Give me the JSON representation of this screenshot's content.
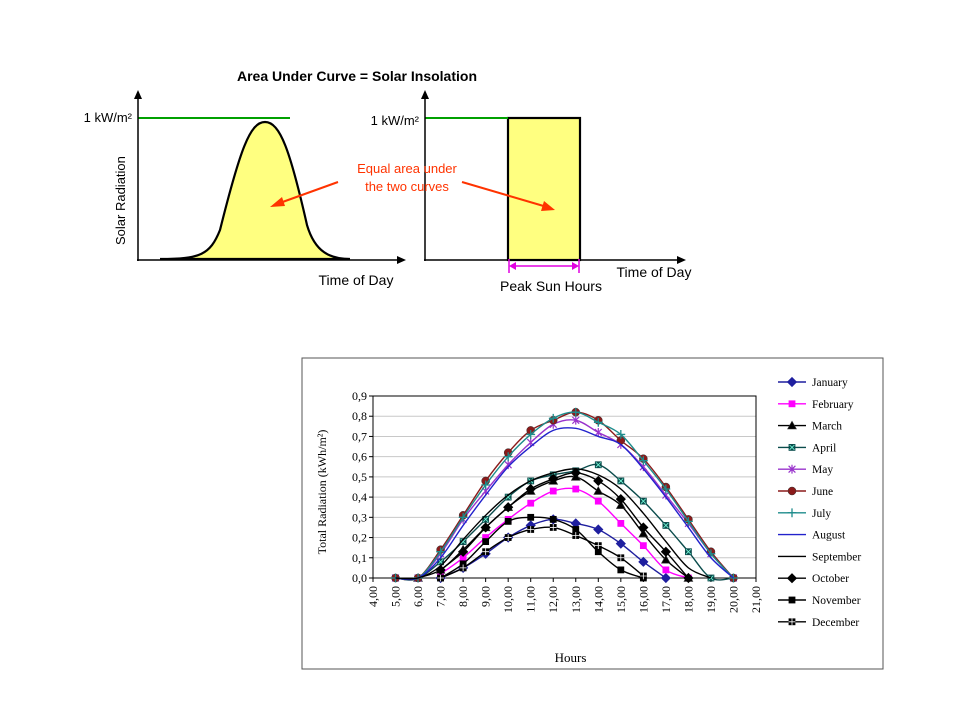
{
  "diagram": {
    "title": "Area Under Curve = Solar Insolation",
    "left": {
      "level_label": "1 kW/m²",
      "ylabel": "Solar Radiation",
      "xlabel": "Time of Day"
    },
    "right": {
      "level_label": "1 kW/m²",
      "xlabel": "Time of Day",
      "bracket_label": "Peak Sun Hours"
    },
    "annotation": [
      "Equal area under",
      "the two curves"
    ],
    "colors": {
      "fill": "#FFFF80",
      "level_line": "#00A000",
      "annotation": "#FF3300",
      "bracket": "#E000E0"
    }
  },
  "chart_data": {
    "type": "line",
    "xlabel": "Hours",
    "ylabel": "Total Radiation (kWh/m²)",
    "xlim": [
      4,
      21
    ],
    "ylim": [
      0,
      0.9
    ],
    "x_ticks": [
      "4,00",
      "5,00",
      "6,00",
      "7,00",
      "8,00",
      "9,00",
      "10,00",
      "11,00",
      "12,00",
      "13,00",
      "14,00",
      "15,00",
      "16,00",
      "17,00",
      "18,00",
      "19,00",
      "20,00",
      "21,00"
    ],
    "y_ticks": [
      "0,0",
      "0,1",
      "0,2",
      "0,3",
      "0,4",
      "0,5",
      "0,6",
      "0,7",
      "0,8",
      "0,9"
    ],
    "legend_position": "right",
    "grid": "horizontal",
    "x": [
      5,
      6,
      7,
      8,
      9,
      10,
      11,
      12,
      13,
      14,
      15,
      16,
      17,
      18,
      19,
      20
    ],
    "series": [
      {
        "name": "January",
        "color": "#1F1F9F",
        "marker": "diamond",
        "values": [
          null,
          null,
          0.0,
          0.05,
          0.12,
          0.2,
          0.26,
          0.29,
          0.27,
          0.24,
          0.17,
          0.08,
          0.0,
          null,
          null,
          null
        ]
      },
      {
        "name": "February",
        "color": "#FF00FF",
        "marker": "square",
        "values": [
          null,
          null,
          0.02,
          0.1,
          0.2,
          0.29,
          0.37,
          0.43,
          0.44,
          0.38,
          0.27,
          0.16,
          0.04,
          0.0,
          null,
          null
        ]
      },
      {
        "name": "March",
        "color": "#000000",
        "marker": "triangle",
        "values": [
          null,
          0.0,
          0.04,
          0.14,
          0.25,
          0.35,
          0.43,
          0.48,
          0.5,
          0.43,
          0.36,
          0.22,
          0.09,
          0.0,
          null,
          null
        ]
      },
      {
        "name": "April",
        "color": "#0B4C4C",
        "marker": "square-x",
        "values": [
          0.0,
          0.0,
          0.08,
          0.18,
          0.29,
          0.4,
          0.48,
          0.51,
          0.53,
          0.56,
          0.48,
          0.38,
          0.26,
          0.13,
          0.0,
          0.0
        ]
      },
      {
        "name": "May",
        "color": "#9933CC",
        "marker": "star",
        "values": [
          0.0,
          0.0,
          0.12,
          0.29,
          0.43,
          0.56,
          0.67,
          0.76,
          0.78,
          0.72,
          0.66,
          0.55,
          0.41,
          0.27,
          0.12,
          0.0
        ]
      },
      {
        "name": "June",
        "color": "#8B1A1A",
        "marker": "circle",
        "values": [
          0.0,
          0.0,
          0.14,
          0.31,
          0.48,
          0.62,
          0.73,
          0.78,
          0.82,
          0.78,
          0.68,
          0.59,
          0.45,
          0.29,
          0.13,
          0.0
        ]
      },
      {
        "name": "July",
        "color": "#1E8C8C",
        "marker": "plus",
        "values": [
          0.0,
          0.0,
          0.13,
          0.3,
          0.46,
          0.6,
          0.71,
          0.79,
          0.82,
          0.77,
          0.71,
          0.58,
          0.44,
          0.28,
          0.12,
          0.0
        ]
      },
      {
        "name": "August",
        "color": "#2222CC",
        "marker": "none",
        "values": [
          0.0,
          0.0,
          0.1,
          0.26,
          0.41,
          0.55,
          0.65,
          0.73,
          0.74,
          0.7,
          0.66,
          0.54,
          0.4,
          0.25,
          0.1,
          0.0
        ]
      },
      {
        "name": "September",
        "color": "#000000",
        "marker": "none",
        "values": [
          0.0,
          0.0,
          0.06,
          0.19,
          0.31,
          0.41,
          0.48,
          0.52,
          0.54,
          0.51,
          0.44,
          0.32,
          0.18,
          0.05,
          0.0,
          null
        ]
      },
      {
        "name": "October",
        "color": "#000000",
        "marker": "diamond",
        "values": [
          null,
          null,
          0.04,
          0.13,
          0.25,
          0.35,
          0.44,
          0.49,
          0.52,
          0.48,
          0.39,
          0.25,
          0.13,
          0.0,
          null,
          null
        ]
      },
      {
        "name": "November",
        "color": "#000000",
        "marker": "square",
        "values": [
          null,
          null,
          0.0,
          0.07,
          0.18,
          0.28,
          0.3,
          0.29,
          0.24,
          0.13,
          0.04,
          0.0,
          null,
          null,
          null,
          null
        ]
      },
      {
        "name": "December",
        "color": "#000000",
        "marker": "square-grid",
        "values": [
          null,
          null,
          0.0,
          0.05,
          0.13,
          0.2,
          0.24,
          0.25,
          0.21,
          0.16,
          0.1,
          0.01,
          null,
          null,
          null,
          null
        ]
      }
    ]
  }
}
